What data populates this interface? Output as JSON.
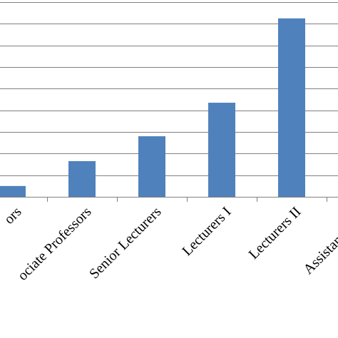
{
  "chart_data": {
    "type": "bar",
    "title": "",
    "xlabel": "",
    "ylabel": "",
    "categories": [
      "Professors",
      "Associate Professors",
      "Senior Lecturers",
      "Lecturers I",
      "Lecturers II",
      "Assistant Lecturers"
    ],
    "tick_labels_shown": [
      "ors",
      "ociate Professors",
      "Senior Lecturers",
      "Lecturers I",
      "Lecturers II",
      "Assistant Lectu"
    ],
    "values": [
      1,
      3.3,
      5.6,
      8.7,
      16.5,
      null
    ],
    "ylim": [
      0,
      18
    ],
    "grid": true,
    "bar_color": "#4f81bd",
    "grid_color": "#808080"
  }
}
